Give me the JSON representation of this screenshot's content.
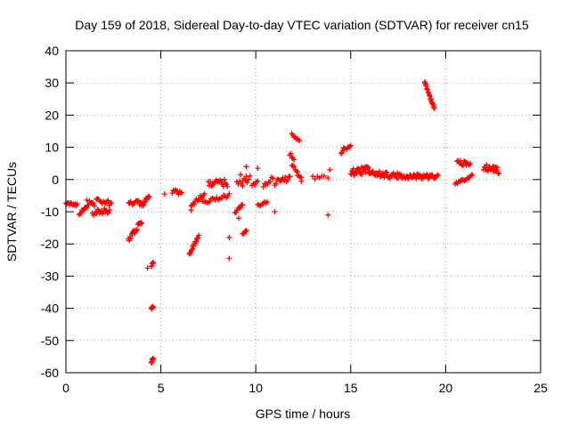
{
  "chart_data": {
    "type": "scatter",
    "title": "Day 159 of 2018, Sidereal Day-to-day VTEC variation (SDTVAR) for receiver cn15",
    "xlabel": "GPS time / hours",
    "ylabel": "SDTVAR / TECUs",
    "xlim": [
      0,
      25
    ],
    "ylim": [
      -60,
      40
    ],
    "xticks": [
      0,
      5,
      10,
      15,
      20,
      25
    ],
    "yticks": [
      -60,
      -50,
      -40,
      -30,
      -20,
      -10,
      0,
      10,
      20,
      30,
      40
    ],
    "grid": true,
    "marker": "+",
    "color": "#ff0000",
    "segments": [
      {
        "x0": 0.0,
        "y0": -7.5,
        "x1": 0.6,
        "y1": -7.8,
        "n": 14,
        "spread": 0.4
      },
      {
        "x0": 0.7,
        "y0": -10.5,
        "x1": 1.1,
        "y1": -8.2,
        "n": 10,
        "spread": 0.6
      },
      {
        "x0": 1.1,
        "y0": -7.2,
        "x1": 1.5,
        "y1": -8.0,
        "n": 10,
        "spread": 0.8
      },
      {
        "x0": 1.4,
        "y0": -10.5,
        "x1": 2.3,
        "y1": -9.5,
        "n": 18,
        "spread": 1.0
      },
      {
        "x0": 1.6,
        "y0": -6.5,
        "x1": 2.4,
        "y1": -7.5,
        "n": 14,
        "spread": 0.8
      },
      {
        "x0": 3.3,
        "y0": -18.5,
        "x1": 4.0,
        "y1": -13.0,
        "n": 18,
        "spread": 0.8
      },
      {
        "x0": 3.3,
        "y0": -7.0,
        "x1": 4.1,
        "y1": -7.5,
        "n": 16,
        "spread": 0.8
      },
      {
        "x0": 4.0,
        "y0": -7.8,
        "x1": 4.4,
        "y1": -5.5,
        "n": 10,
        "spread": 0.8
      },
      {
        "x0": 4.5,
        "y0": -27.0,
        "x1": 4.6,
        "y1": -26.0,
        "n": 6,
        "spread": 0.6
      },
      {
        "x0": 4.5,
        "y0": -40.5,
        "x1": 4.6,
        "y1": -39.5,
        "n": 6,
        "spread": 0.6
      },
      {
        "x0": 4.5,
        "y0": -57.0,
        "x1": 4.6,
        "y1": -55.5,
        "n": 7,
        "spread": 0.6
      },
      {
        "x0": 5.6,
        "y0": -3.5,
        "x1": 6.1,
        "y1": -4.5,
        "n": 10,
        "spread": 0.8
      },
      {
        "x0": 6.5,
        "y0": -23.0,
        "x1": 7.0,
        "y1": -17.5,
        "n": 16,
        "spread": 0.6
      },
      {
        "x0": 6.6,
        "y0": -8.0,
        "x1": 7.3,
        "y1": -4.5,
        "n": 14,
        "spread": 0.6
      },
      {
        "x0": 7.2,
        "y0": -7.0,
        "x1": 8.6,
        "y1": -5.0,
        "n": 20,
        "spread": 0.6
      },
      {
        "x0": 7.5,
        "y0": -1.0,
        "x1": 8.5,
        "y1": -1.2,
        "n": 20,
        "spread": 1.2
      },
      {
        "x0": 8.9,
        "y0": -10.0,
        "x1": 9.3,
        "y1": -8.0,
        "n": 8,
        "spread": 0.6
      },
      {
        "x0": 9.3,
        "y0": -17.0,
        "x1": 9.5,
        "y1": -15.5,
        "n": 6,
        "spread": 0.5
      },
      {
        "x0": 9.0,
        "y0": -1.5,
        "x1": 9.7,
        "y1": 0.5,
        "n": 10,
        "spread": 1.0
      },
      {
        "x0": 9.8,
        "y0": -2.0,
        "x1": 10.1,
        "y1": -1.0,
        "n": 5,
        "spread": 0.5
      },
      {
        "x0": 10.1,
        "y0": -8.0,
        "x1": 10.6,
        "y1": -7.0,
        "n": 8,
        "spread": 0.5
      },
      {
        "x0": 10.4,
        "y0": -2.0,
        "x1": 10.9,
        "y1": 0.5,
        "n": 8,
        "spread": 0.6
      },
      {
        "x0": 11.0,
        "y0": -1.0,
        "x1": 11.8,
        "y1": 0.5,
        "n": 14,
        "spread": 0.8
      },
      {
        "x0": 11.8,
        "y0": 8.0,
        "x1": 12.0,
        "y1": 6.5,
        "n": 5,
        "spread": 0.5
      },
      {
        "x0": 11.9,
        "y0": 14.0,
        "x1": 12.3,
        "y1": 12.0,
        "n": 8,
        "spread": 0.4
      },
      {
        "x0": 11.9,
        "y0": 4.5,
        "x1": 12.2,
        "y1": 2.5,
        "n": 6,
        "spread": 0.5
      },
      {
        "x0": 12.2,
        "y0": 1.5,
        "x1": 12.4,
        "y1": 0.5,
        "n": 4,
        "spread": 0.4
      },
      {
        "x0": 13.0,
        "y0": 0.5,
        "x1": 13.6,
        "y1": 1.5,
        "n": 6,
        "spread": 0.6
      },
      {
        "x0": 14.5,
        "y0": 8.5,
        "x1": 14.7,
        "y1": 10.0,
        "n": 6,
        "spread": 0.5
      },
      {
        "x0": 14.8,
        "y0": 9.5,
        "x1": 15.0,
        "y1": 10.5,
        "n": 5,
        "spread": 0.4
      },
      {
        "x0": 15.0,
        "y0": 2.5,
        "x1": 16.0,
        "y1": 3.0,
        "n": 30,
        "spread": 1.2
      },
      {
        "x0": 16.0,
        "y0": 2.0,
        "x1": 17.5,
        "y1": 1.0,
        "n": 36,
        "spread": 1.0
      },
      {
        "x0": 17.5,
        "y0": 1.0,
        "x1": 18.5,
        "y1": 1.0,
        "n": 24,
        "spread": 0.8
      },
      {
        "x0": 18.5,
        "y0": 1.0,
        "x1": 19.6,
        "y1": 1.0,
        "n": 26,
        "spread": 0.8
      },
      {
        "x0": 18.9,
        "y0": 30.0,
        "x1": 19.4,
        "y1": 22.0,
        "n": 20,
        "spread": 0.5
      },
      {
        "x0": 20.5,
        "y0": -1.0,
        "x1": 21.4,
        "y1": 1.0,
        "n": 16,
        "spread": 0.6
      },
      {
        "x0": 20.6,
        "y0": 5.5,
        "x1": 21.3,
        "y1": 4.5,
        "n": 14,
        "spread": 0.8
      },
      {
        "x0": 22.0,
        "y0": 4.0,
        "x1": 22.8,
        "y1": 3.0,
        "n": 22,
        "spread": 1.2
      }
    ],
    "points": [
      {
        "x": 4.3,
        "y": -27.5
      },
      {
        "x": 5.2,
        "y": -4.5
      },
      {
        "x": 6.6,
        "y": -9.5
      },
      {
        "x": 8.6,
        "y": -18.0
      },
      {
        "x": 8.6,
        "y": -24.5
      },
      {
        "x": 9.1,
        "y": -12.0
      },
      {
        "x": 9.2,
        "y": 1.5
      },
      {
        "x": 9.5,
        "y": 4.0
      },
      {
        "x": 9.5,
        "y": 1.0
      },
      {
        "x": 9.3,
        "y": -2.0
      },
      {
        "x": 10.1,
        "y": 3.5
      },
      {
        "x": 11.0,
        "y": -10.0
      },
      {
        "x": 12.4,
        "y": -0.5
      },
      {
        "x": 13.9,
        "y": 3.0
      },
      {
        "x": 13.8,
        "y": -11.0
      },
      {
        "x": 13.8,
        "y": 0.5
      }
    ]
  }
}
